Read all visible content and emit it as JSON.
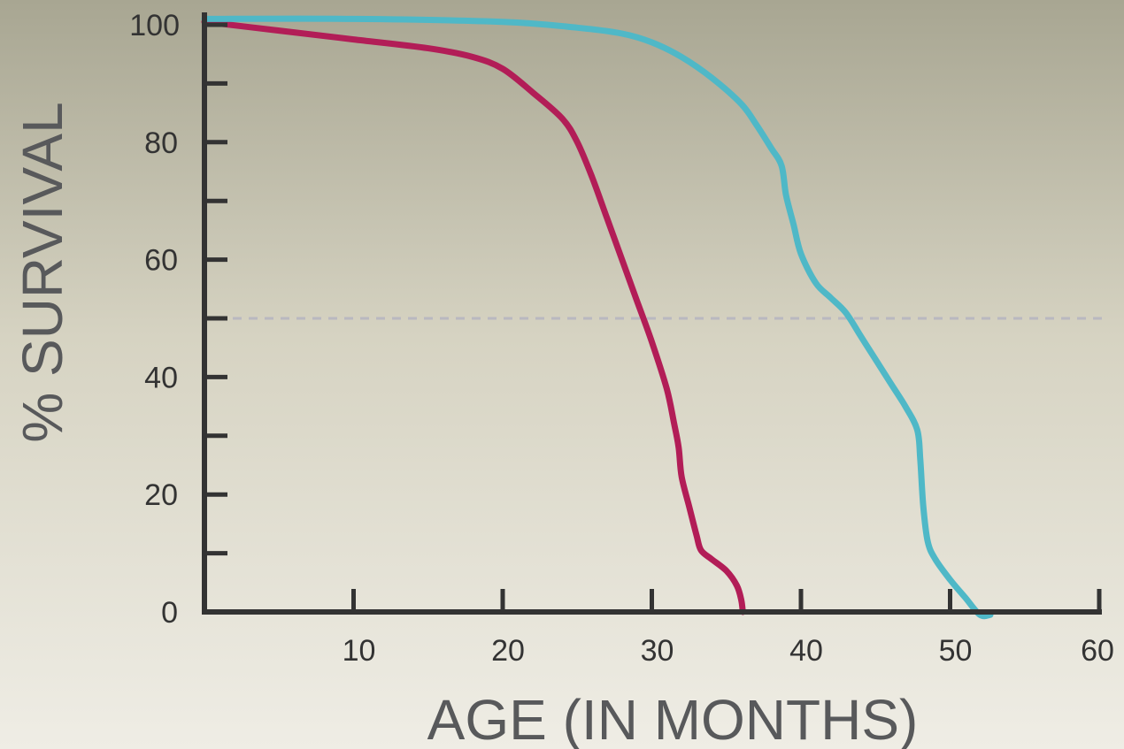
{
  "chart_data": {
    "type": "line",
    "title": "",
    "xlabel": "AGE (IN MONTHS)",
    "ylabel": "% SURVIVAL",
    "xlim": [
      0,
      60
    ],
    "ylim": [
      0,
      100
    ],
    "x_ticks": [
      10,
      20,
      30,
      40,
      50,
      60
    ],
    "y_ticks": [
      0,
      20,
      40,
      60,
      80,
      100
    ],
    "y_minor_ticks": [
      10,
      30,
      50,
      70,
      90
    ],
    "reference_line": {
      "y": 50,
      "style": "dashed"
    },
    "legend": "none",
    "series": [
      {
        "color": "#b21d57",
        "x": [
          0,
          5,
          10,
          15,
          18,
          20,
          22,
          24,
          25,
          26,
          27,
          28,
          29,
          30,
          31,
          31.5,
          31.8,
          32,
          32.5,
          33,
          33.3,
          34,
          35,
          35.7,
          36,
          36.1
        ],
        "y": [
          100.5,
          99,
          97.5,
          96,
          94.5,
          92.5,
          88.5,
          84,
          80,
          74,
          67,
          60,
          53,
          46,
          38,
          32,
          28,
          23,
          18,
          13,
          10.5,
          9,
          7,
          4.5,
          2,
          0
        ]
      },
      {
        "color": "#4fb8c7",
        "x": [
          0,
          10,
          20,
          25,
          28,
          30,
          32,
          34,
          36,
          37,
          38,
          38.7,
          39,
          39.5,
          40,
          41,
          42,
          43,
          44,
          45,
          46,
          47,
          47.8,
          48,
          48.2,
          48.5,
          49,
          50,
          51,
          52,
          52.7
        ],
        "y": [
          101,
          101,
          100.5,
          99.5,
          98.5,
          97,
          94.5,
          91,
          86.5,
          83,
          79,
          76,
          71,
          66,
          61,
          56,
          53.5,
          51,
          47,
          43,
          39,
          35,
          31,
          26,
          18,
          12,
          9,
          5.5,
          2.5,
          -0.5,
          -0.5
        ]
      }
    ]
  }
}
